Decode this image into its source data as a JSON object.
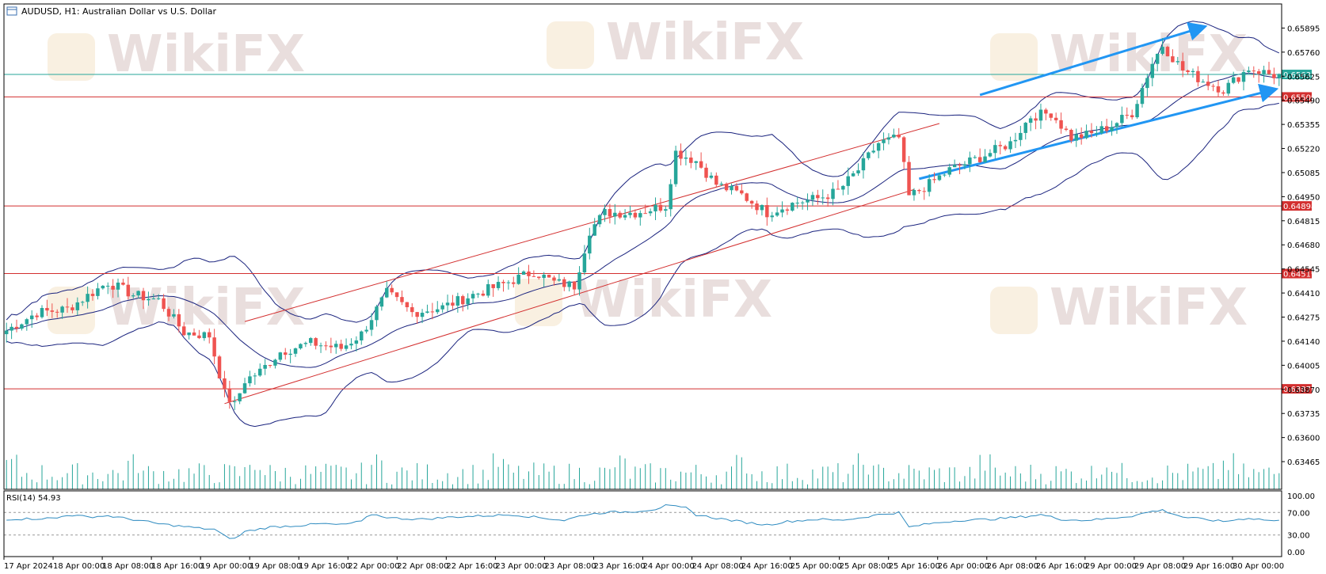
{
  "window": {
    "title": "AUDUSD, H1:  Australian Dollar vs U.S. Dollar"
  },
  "watermark": {
    "text": "WikiFX"
  },
  "colors": {
    "bull": "#26a69a",
    "bear": "#ef5350",
    "bands": "#1a237e",
    "level": "#d32f2f",
    "current": "#26a69a",
    "volume": "#26a69a",
    "rsi": "#2e8bc0",
    "arrow": "#2196f3"
  },
  "chart_data": [
    {
      "type": "candlestick",
      "title": "AUDUSD, H1:  Australian Dollar vs U.S. Dollar",
      "ylim": [
        0.6331,
        0.6603
      ],
      "y_ticks": [
        "0.65895",
        "0.65760",
        "0.65625",
        "0.65490",
        "0.65355",
        "0.65220",
        "0.65085",
        "0.64950",
        "0.64815",
        "0.64680",
        "0.64545",
        "0.64410",
        "0.64275",
        "0.64140",
        "0.64005",
        "0.63870",
        "0.63735",
        "0.63600",
        "0.63465"
      ],
      "x_ticks": [
        "17 Apr 2024",
        "18 Apr 00:00",
        "18 Apr 08:00",
        "18 Apr 16:00",
        "19 Apr 00:00",
        "19 Apr 08:00",
        "19 Apr 16:00",
        "22 Apr 00:00",
        "22 Apr 08:00",
        "22 Apr 16:00",
        "23 Apr 00:00",
        "23 Apr 08:00",
        "23 Apr 16:00",
        "24 Apr 00:00",
        "24 Apr 08:00",
        "24 Apr 16:00",
        "25 Apr 00:00",
        "25 Apr 08:00",
        "25 Apr 16:00",
        "26 Apr 00:00",
        "26 Apr 08:00",
        "26 Apr 16:00",
        "29 Apr 00:00",
        "29 Apr 08:00",
        "29 Apr 16:00",
        "30 Apr 00:00"
      ],
      "horizontal_levels": [
        {
          "label": "0.65635",
          "value": 0.65635,
          "kind": "current"
        },
        {
          "label": "0.65509",
          "value": 0.65509,
          "kind": "support"
        },
        {
          "label": "0.64898",
          "value": 0.64898,
          "kind": "support"
        },
        {
          "label": "0.64519",
          "value": 0.64519,
          "kind": "support"
        },
        {
          "label": "0.63873",
          "value": 0.63873,
          "kind": "support"
        }
      ],
      "price_path": [
        [
          0,
          0.642
        ],
        [
          6,
          0.643
        ],
        [
          12,
          0.6432
        ],
        [
          20,
          0.6447
        ],
        [
          25,
          0.644
        ],
        [
          30,
          0.6437
        ],
        [
          35,
          0.6419
        ],
        [
          40,
          0.6417
        ],
        [
          43,
          0.6385
        ],
        [
          45,
          0.6378
        ],
        [
          47,
          0.6392
        ],
        [
          50,
          0.6397
        ],
        [
          54,
          0.6408
        ],
        [
          60,
          0.6413
        ],
        [
          66,
          0.641
        ],
        [
          70,
          0.6418
        ],
        [
          75,
          0.6441
        ],
        [
          80,
          0.643
        ],
        [
          86,
          0.6433
        ],
        [
          92,
          0.644
        ],
        [
          98,
          0.6446
        ],
        [
          104,
          0.6453
        ],
        [
          108,
          0.6447
        ],
        [
          112,
          0.6445
        ],
        [
          115,
          0.6476
        ],
        [
          118,
          0.6486
        ],
        [
          124,
          0.6486
        ],
        [
          130,
          0.649
        ],
        [
          132,
          0.652
        ],
        [
          136,
          0.6515
        ],
        [
          140,
          0.6502
        ],
        [
          145,
          0.6496
        ],
        [
          150,
          0.6486
        ],
        [
          156,
          0.6492
        ],
        [
          160,
          0.6494
        ],
        [
          164,
          0.6498
        ],
        [
          168,
          0.651
        ],
        [
          172,
          0.6525
        ],
        [
          176,
          0.6528
        ],
        [
          178,
          0.6495
        ],
        [
          182,
          0.6502
        ],
        [
          186,
          0.651
        ],
        [
          192,
          0.6517
        ],
        [
          198,
          0.6525
        ],
        [
          202,
          0.654
        ],
        [
          206,
          0.6542
        ],
        [
          210,
          0.6528
        ],
        [
          214,
          0.653
        ],
        [
          218,
          0.6535
        ],
        [
          222,
          0.6542
        ],
        [
          226,
          0.657
        ],
        [
          228,
          0.658
        ],
        [
          232,
          0.6566
        ],
        [
          236,
          0.656
        ],
        [
          240,
          0.6555
        ],
        [
          245,
          0.6567
        ],
        [
          250,
          0.6563
        ]
      ],
      "rsi": {
        "label": "RSI(14) 54.93",
        "ylim": [
          0,
          100
        ],
        "y_ticks": [
          "100.00",
          "70.00",
          "30.00",
          "0.00"
        ],
        "levels": [
          70,
          30
        ],
        "values": [
          [
            0,
            58
          ],
          [
            10,
            60
          ],
          [
            12,
            66
          ],
          [
            16,
            62
          ],
          [
            20,
            64
          ],
          [
            26,
            56
          ],
          [
            30,
            50
          ],
          [
            34,
            46
          ],
          [
            38,
            42
          ],
          [
            41,
            40
          ],
          [
            43,
            28
          ],
          [
            45,
            23
          ],
          [
            47,
            36
          ],
          [
            52,
            44
          ],
          [
            58,
            47
          ],
          [
            62,
            50
          ],
          [
            66,
            48
          ],
          [
            70,
            54
          ],
          [
            72,
            67
          ],
          [
            76,
            60
          ],
          [
            82,
            58
          ],
          [
            88,
            62
          ],
          [
            94,
            64
          ],
          [
            100,
            66
          ],
          [
            104,
            62
          ],
          [
            108,
            58
          ],
          [
            110,
            56
          ],
          [
            114,
            66
          ],
          [
            118,
            70
          ],
          [
            124,
            72
          ],
          [
            128,
            76
          ],
          [
            130,
            82
          ],
          [
            134,
            78
          ],
          [
            136,
            66
          ],
          [
            140,
            60
          ],
          [
            146,
            52
          ],
          [
            150,
            48
          ],
          [
            154,
            54
          ],
          [
            160,
            58
          ],
          [
            164,
            56
          ],
          [
            168,
            60
          ],
          [
            172,
            66
          ],
          [
            176,
            70
          ],
          [
            178,
            44
          ],
          [
            182,
            50
          ],
          [
            188,
            56
          ],
          [
            194,
            58
          ],
          [
            200,
            62
          ],
          [
            204,
            66
          ],
          [
            208,
            58
          ],
          [
            212,
            56
          ],
          [
            216,
            58
          ],
          [
            222,
            64
          ],
          [
            226,
            72
          ],
          [
            228,
            74
          ],
          [
            232,
            62
          ],
          [
            236,
            58
          ],
          [
            240,
            54
          ],
          [
            245,
            60
          ],
          [
            250,
            55
          ]
        ]
      }
    }
  ]
}
